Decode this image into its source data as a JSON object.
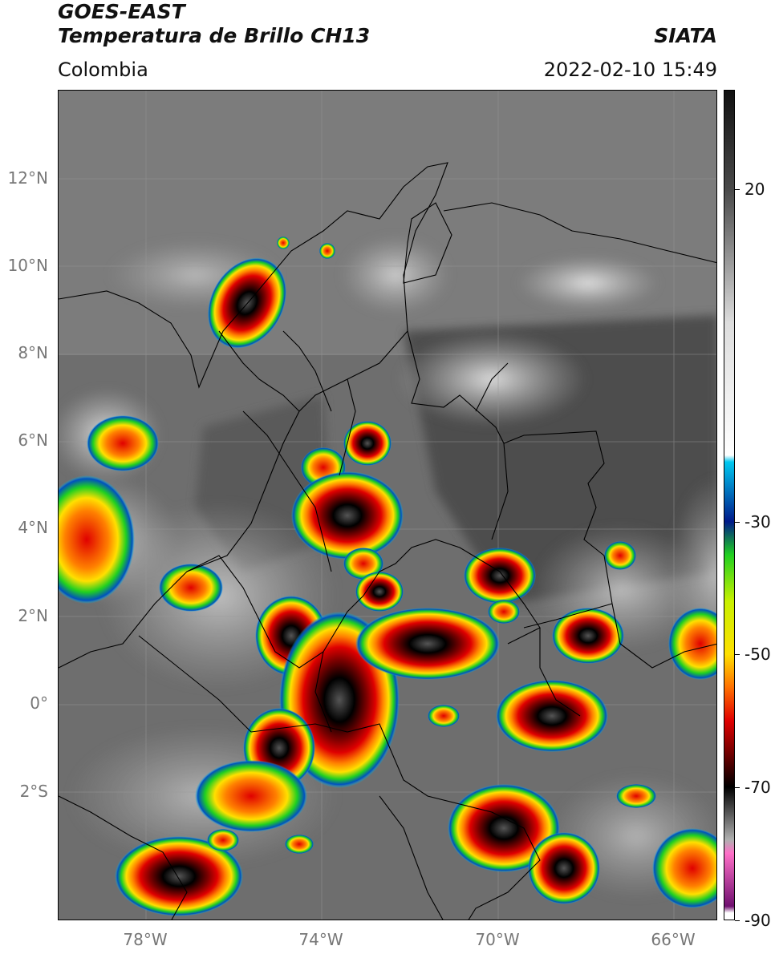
{
  "header": {
    "line1": "GOES-EAST",
    "line2": "Temperatura de Brillo CH13",
    "region": "Colombia",
    "source": "SIATA",
    "datetime": "2022-02-10 15:49"
  },
  "lat_labels": [
    "12°N",
    "10°N",
    "8°N",
    "6°N",
    "4°N",
    "2°N",
    "0°",
    "2°S"
  ],
  "lon_labels": [
    "78°W",
    "74°W",
    "70°W",
    "66°W"
  ],
  "colorbar": {
    "labels": [
      "20",
      "-30",
      "-50",
      "-70",
      "-90"
    ],
    "range": [
      -90,
      35
    ],
    "stops": [
      {
        "v": 35,
        "color": "#111111"
      },
      {
        "v": 20,
        "color": "#4a4a4a"
      },
      {
        "v": 0,
        "color": "#dddddd"
      },
      {
        "v": -20,
        "color": "#ffffff"
      },
      {
        "v": -21,
        "color": "#00c8f0"
      },
      {
        "v": -30,
        "color": "#001a8a"
      },
      {
        "v": -35,
        "color": "#20d020"
      },
      {
        "v": -42,
        "color": "#c8f000"
      },
      {
        "v": -50,
        "color": "#ffe000"
      },
      {
        "v": -55,
        "color": "#ff7000"
      },
      {
        "v": -60,
        "color": "#e00000"
      },
      {
        "v": -65,
        "color": "#700000"
      },
      {
        "v": -70,
        "color": "#000000"
      },
      {
        "v": -78,
        "color": "#b0b0b0"
      },
      {
        "v": -80,
        "color": "#ff70c8"
      },
      {
        "v": -88,
        "color": "#701070"
      },
      {
        "v": -89,
        "color": "#ffffff"
      },
      {
        "v": -90,
        "color": "#ffffff"
      }
    ]
  }
}
